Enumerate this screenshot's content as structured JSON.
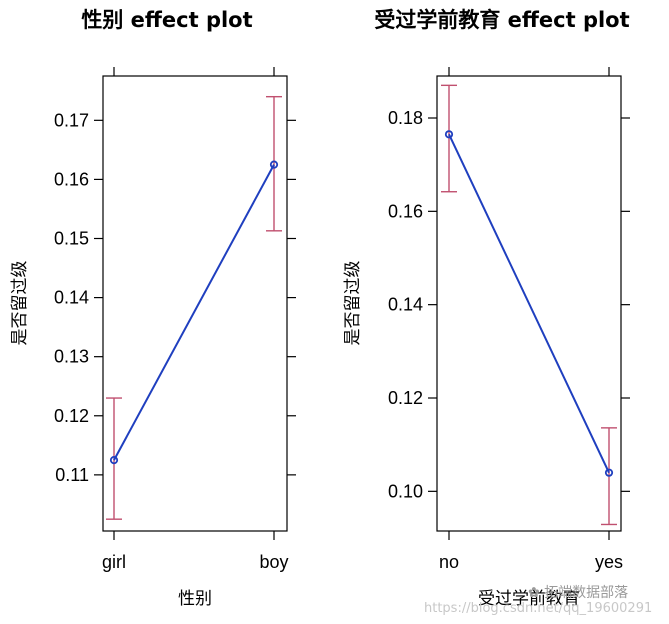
{
  "chart_data": [
    {
      "type": "line",
      "title": "性别 effect plot",
      "xlabel": "性别",
      "ylabel": "是否留过级",
      "categories": [
        "girl",
        "boy"
      ],
      "values": [
        0.1125,
        0.1625
      ],
      "lower": [
        0.1025,
        0.1513
      ],
      "upper": [
        0.123,
        0.174
      ],
      "ylim": [
        0.1005,
        0.1775
      ],
      "yticks": [
        0.11,
        0.12,
        0.13,
        0.14,
        0.15,
        0.16,
        0.17
      ],
      "ytick_labels": [
        "0.11",
        "0.12",
        "0.13",
        "0.14",
        "0.15",
        "0.16",
        "0.17"
      ],
      "grid": false,
      "colors": {
        "fit": "#1f3fbf",
        "ci": "#c0506f"
      }
    },
    {
      "type": "line",
      "title": "受过学前教育 effect plot",
      "xlabel": "受过学前教育",
      "ylabel": "是否留过级",
      "categories": [
        "no",
        "yes"
      ],
      "values": [
        0.1765,
        0.104
      ],
      "lower": [
        0.1642,
        0.0929
      ],
      "upper": [
        0.187,
        0.1136
      ],
      "ylim": [
        0.0915,
        0.189
      ],
      "yticks": [
        0.1,
        0.12,
        0.14,
        0.16,
        0.18
      ],
      "ytick_labels": [
        "0.10",
        "0.12",
        "0.14",
        "0.16",
        "0.18"
      ],
      "grid": false,
      "colors": {
        "fit": "#1f3fbf",
        "ci": "#c0506f"
      }
    }
  ],
  "watermark": {
    "label": "✿ 拓端数据部落",
    "url": "https://blog.csdn.net/qq_19600291"
  }
}
